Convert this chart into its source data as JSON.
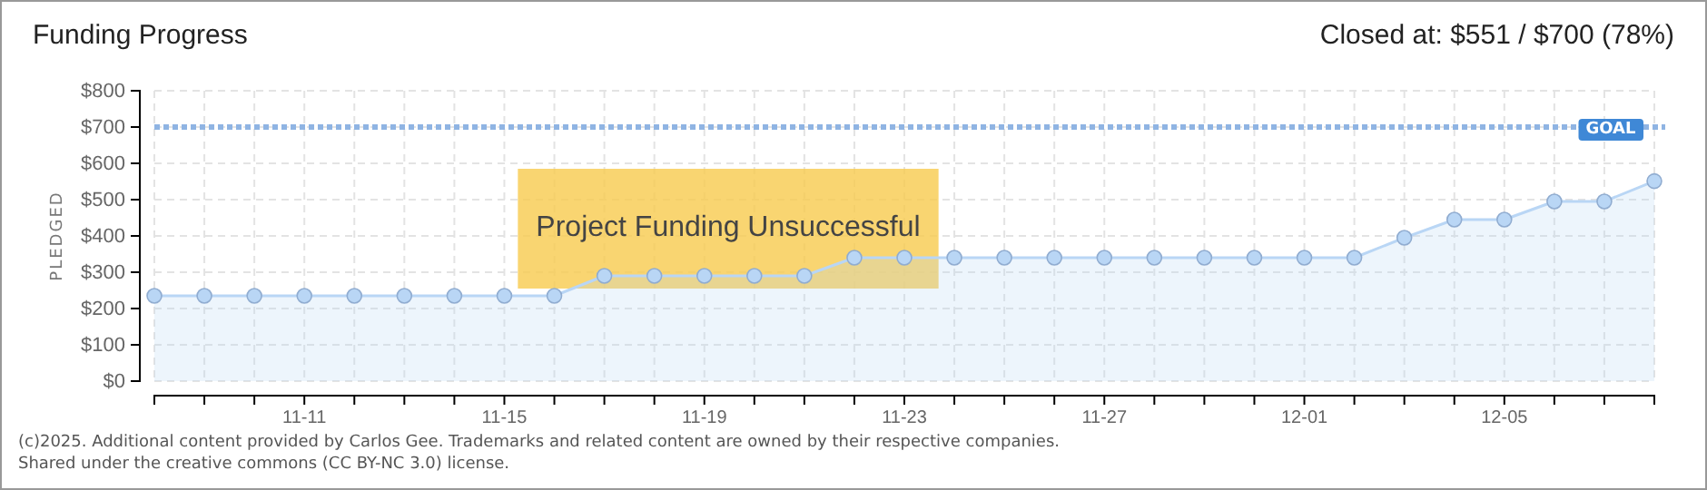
{
  "chart_data": {
    "type": "area",
    "title": "Funding Progress",
    "subtitle": "Closed at: $551 / $700 (78%)",
    "ylabel": "PLEDGED",
    "x": [
      "--11-08",
      "--11-09",
      "--11-10",
      "--11-11",
      "--11-12",
      "--11-13",
      "--11-14",
      "--11-15",
      "--11-16",
      "--11-17",
      "--11-18",
      "--11-19",
      "--11-20",
      "--11-21",
      "--11-22",
      "--11-23",
      "--11-24",
      "--11-25",
      "--11-26",
      "--11-27",
      "--11-28",
      "--11-29",
      "--11-30",
      "--12-01",
      "--12-02",
      "--12-03",
      "--12-04",
      "--12-05",
      "--12-06",
      "--12-07",
      "--12-08"
    ],
    "series": [
      {
        "color": "#b9d6f5",
        "values": [
          235,
          235,
          235,
          235,
          235,
          235,
          235,
          235,
          235,
          290,
          290,
          290,
          290,
          290,
          340,
          340,
          340,
          340,
          340,
          340,
          340,
          340,
          340,
          340,
          340,
          395,
          445,
          445,
          495,
          495,
          551
        ]
      }
    ],
    "xlim": [
      "--11-08",
      "--12-08"
    ],
    "xticks": [
      {
        "value": "--11-08",
        "label": null
      },
      {
        "value": "--11-09",
        "label": null
      },
      {
        "value": "--11-10",
        "label": null
      },
      {
        "value": "--11-11",
        "label": "11-11"
      },
      {
        "value": "--11-12",
        "label": null
      },
      {
        "value": "--11-13",
        "label": null
      },
      {
        "value": "--11-14",
        "label": null
      },
      {
        "value": "--11-15",
        "label": "11-15"
      },
      {
        "value": "--11-16",
        "label": null
      },
      {
        "value": "--11-17",
        "label": null
      },
      {
        "value": "--11-18",
        "label": null
      },
      {
        "value": "--11-19",
        "label": "11-19"
      },
      {
        "value": "--11-20",
        "label": null
      },
      {
        "value": "--11-21",
        "label": null
      },
      {
        "value": "--11-22",
        "label": null
      },
      {
        "value": "--11-23",
        "label": "11-23"
      },
      {
        "value": "--11-24",
        "label": null
      },
      {
        "value": "--11-25",
        "label": null
      },
      {
        "value": "--11-26",
        "label": null
      },
      {
        "value": "--11-27",
        "label": "11-27"
      },
      {
        "value": "--11-28",
        "label": null
      },
      {
        "value": "--11-29",
        "label": null
      },
      {
        "value": "--11-30",
        "label": null
      },
      {
        "value": "--12-01",
        "label": "12-01"
      },
      {
        "value": "--12-02",
        "label": null
      },
      {
        "value": "--12-03",
        "label": null
      },
      {
        "value": "--12-04",
        "label": null
      },
      {
        "value": "--12-05",
        "label": "12-05"
      },
      {
        "value": "--12-06",
        "label": null
      },
      {
        "value": "--12-07",
        "label": null
      },
      {
        "value": "--12-08",
        "label": null
      }
    ],
    "ylim": [
      0,
      800
    ],
    "yticks": [
      {
        "value": 0,
        "label": "$0"
      },
      {
        "value": 100,
        "label": "$100"
      },
      {
        "value": 200,
        "label": "$200"
      },
      {
        "value": 300,
        "label": "$300"
      },
      {
        "value": 400,
        "label": "$400"
      },
      {
        "value": 500,
        "label": "$500"
      },
      {
        "value": 600,
        "label": "$600"
      },
      {
        "value": 700,
        "label": "$700"
      },
      {
        "value": 800,
        "label": "$800"
      }
    ],
    "ref_lines": [
      {
        "axis": "y",
        "value": 700,
        "label": "GOAL",
        "color": "#8fb4e3",
        "line_style": "dotted"
      }
    ],
    "annotations": [
      "Project Funding Unsuccessful",
      "(c)2025. Additional content provided by Carlos Gee. Trademarks and related content are owned by their respective companies.",
      "Shared under the creative commons (CC BY-NC 3.0) license."
    ],
    "grid": true,
    "marker": "circle"
  }
}
